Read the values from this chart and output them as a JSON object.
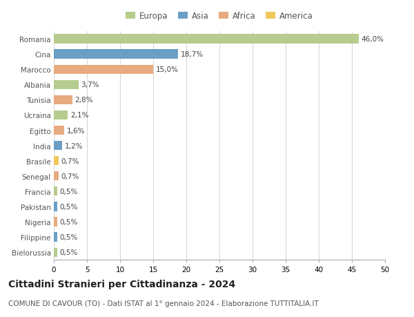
{
  "countries": [
    "Romania",
    "Cina",
    "Marocco",
    "Albania",
    "Tunisia",
    "Ucraina",
    "Egitto",
    "India",
    "Brasile",
    "Senegal",
    "Francia",
    "Pakistan",
    "Nigeria",
    "Filippine",
    "Bielorussia"
  ],
  "values": [
    46.0,
    18.7,
    15.0,
    3.7,
    2.8,
    2.1,
    1.6,
    1.2,
    0.7,
    0.7,
    0.5,
    0.5,
    0.5,
    0.5,
    0.5
  ],
  "labels": [
    "46,0%",
    "18,7%",
    "15,0%",
    "3,7%",
    "2,8%",
    "2,1%",
    "1,6%",
    "1,2%",
    "0,7%",
    "0,7%",
    "0,5%",
    "0,5%",
    "0,5%",
    "0,5%",
    "0,5%"
  ],
  "continents": [
    "Europa",
    "Asia",
    "Africa",
    "Europa",
    "Africa",
    "Europa",
    "Africa",
    "Asia",
    "America",
    "Africa",
    "Europa",
    "Asia",
    "Africa",
    "Asia",
    "Europa"
  ],
  "colors": {
    "Europa": "#b5cc8e",
    "Asia": "#6a9ec5",
    "Africa": "#e8aa80",
    "America": "#f0c85a"
  },
  "legend_order": [
    "Europa",
    "Asia",
    "Africa",
    "America"
  ],
  "xlim": [
    0,
    50
  ],
  "xticks": [
    0,
    5,
    10,
    15,
    20,
    25,
    30,
    35,
    40,
    45,
    50
  ],
  "title": "Cittadini Stranieri per Cittadinanza - 2024",
  "subtitle": "COMUNE DI CAVOUR (TO) - Dati ISTAT al 1° gennaio 2024 - Elaborazione TUTTITALIA.IT",
  "background_color": "#ffffff",
  "grid_color": "#d8d8d8",
  "bar_height": 0.6,
  "title_fontsize": 10,
  "subtitle_fontsize": 7.5,
  "label_fontsize": 7.5,
  "tick_fontsize": 7.5,
  "legend_fontsize": 8.5
}
